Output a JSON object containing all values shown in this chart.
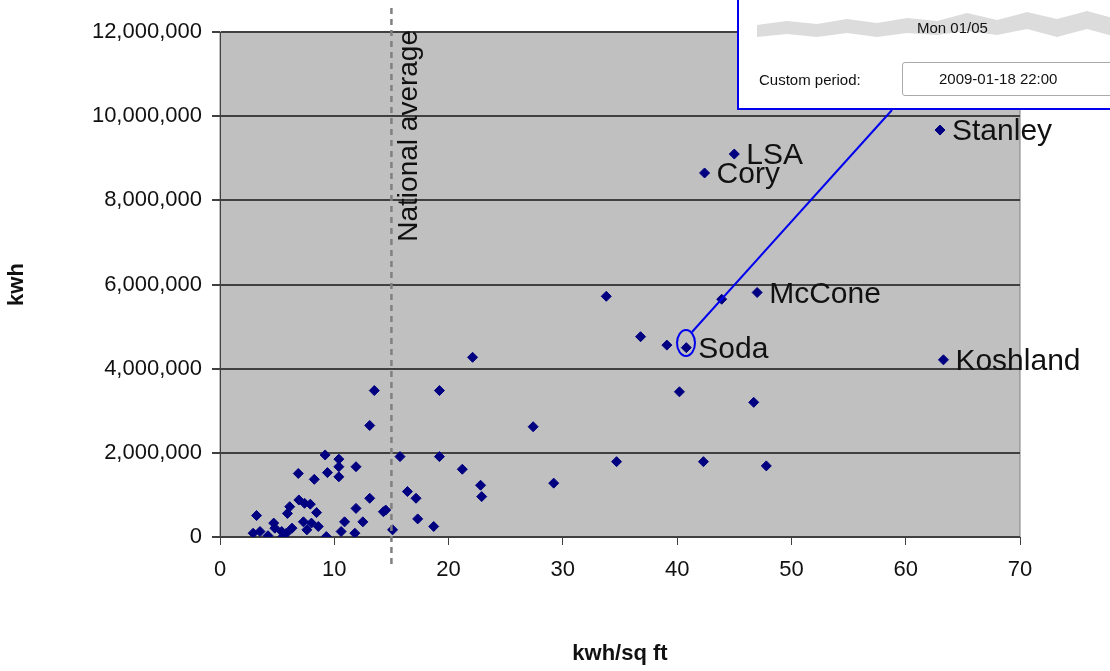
{
  "chart_data": {
    "type": "scatter",
    "xlabel": "kwh/sq ft",
    "ylabel": "kwh",
    "xlim": [
      0,
      70
    ],
    "xticks": [
      0,
      10,
      20,
      30,
      40,
      50,
      60,
      70
    ],
    "ylim": [
      0,
      12000000
    ],
    "yticks": [
      0,
      {
        "value": 2000000,
        "label": "2,000,000"
      },
      {
        "value": 4000000,
        "label": "4,000,000"
      },
      {
        "value": 6000000,
        "label": "6,000,000"
      },
      {
        "value": 8000000,
        "label": "8,000,000"
      },
      {
        "value": 10000000,
        "label": "10,000,000"
      },
      {
        "value": 12000000,
        "label": "12,000,000"
      }
    ],
    "grid": "y",
    "legend": false,
    "marker": "diamond",
    "series": [
      {
        "color": "#000080",
        "x": [
          63.0,
          45.0,
          42.4,
          47.0,
          40.8,
          63.3,
          33.8,
          43.9,
          36.8,
          39.1,
          22.1,
          40.2,
          46.7,
          27.4,
          34.7,
          42.3,
          47.8,
          29.2,
          21.2,
          22.8,
          22.9,
          13.5,
          19.2,
          13.1,
          9.2,
          10.4,
          10.4,
          10.4,
          15.75,
          19.2,
          11.9,
          6.85,
          8.25,
          9.4,
          6.9,
          6.1,
          7.4,
          7.9,
          5.9,
          8.45,
          3.2,
          11.9,
          13.1,
          14.3,
          14.5,
          16.4,
          17.15,
          10.9,
          12.5,
          17.3,
          18.7,
          15.1,
          4.7,
          4.8,
          3.5,
          2.9,
          4.2,
          5.4,
          5.8,
          6.3,
          7.3,
          8.0,
          8.6,
          7.6,
          9.3,
          10.6,
          11.8,
          5.5
        ],
        "values": [
          9670000,
          9100000,
          8650000,
          5810000,
          4500000,
          4210000,
          5720000,
          5650000,
          4760000,
          4560000,
          4270000,
          3450000,
          3200000,
          2620000,
          1790000,
          1790000,
          1690000,
          1280000,
          1610000,
          1230000,
          960000,
          3480000,
          3480000,
          2650000,
          1950000,
          1850000,
          1670000,
          1430000,
          1910000,
          1910000,
          1670000,
          1510000,
          1370000,
          1530000,
          880000,
          720000,
          800000,
          780000,
          560000,
          580000,
          510000,
          680000,
          920000,
          600000,
          640000,
          1080000,
          920000,
          360000,
          360000,
          430000,
          250000,
          170000,
          330000,
          210000,
          130000,
          90000,
          30000,
          130000,
          90000,
          210000,
          360000,
          330000,
          250000,
          170000,
          10000,
          130000,
          90000,
          10000
        ]
      }
    ],
    "ref_lines": [
      {
        "axis": "x",
        "value": 15,
        "label": "National average",
        "line_style": "dashed",
        "color": "#808080"
      }
    ],
    "annotations": [
      {
        "text": "Stanley",
        "x": 63.0,
        "y": 9670000
      },
      {
        "text": "LSA",
        "x": 45.0,
        "y": 9100000
      },
      {
        "text": "Cory",
        "x": 42.4,
        "y": 8650000
      },
      {
        "text": "McCone",
        "x": 47.0,
        "y": 5810000
      },
      {
        "text": "Soda",
        "x": 40.8,
        "y": 4500000
      },
      {
        "text": "Koshland",
        "x": 63.3,
        "y": 4210000
      },
      "Mon 01/05",
      "Custom period:",
      "2009-01-18 22:00"
    ]
  }
}
